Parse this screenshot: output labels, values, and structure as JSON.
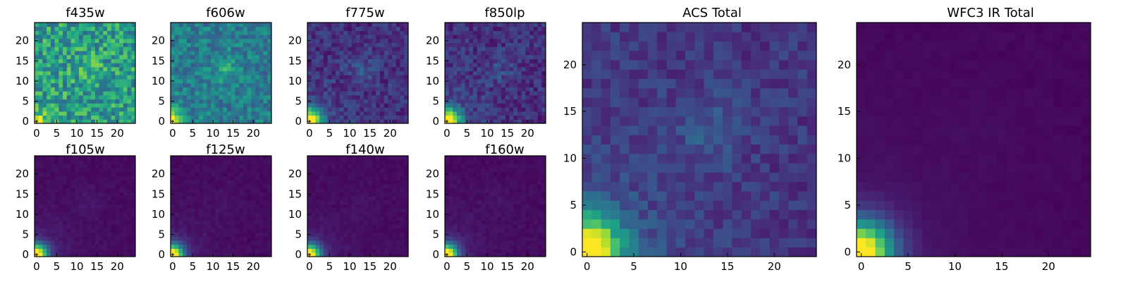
{
  "colormap": [
    "#440154",
    "#482878",
    "#3e4989",
    "#31688e",
    "#26828e",
    "#1f9e89",
    "#35b779",
    "#6ece58",
    "#b5de2b",
    "#fde725"
  ],
  "chart_data": [
    {
      "type": "heatmap",
      "title": "f435w",
      "xticks": [
        "0",
        "5",
        "10",
        "15",
        "20"
      ],
      "yticks": [
        "0",
        "5",
        "10",
        "15",
        "20"
      ],
      "xlim": [
        0,
        24
      ],
      "ylim": [
        0,
        24
      ],
      "grid": false,
      "noise": 0.22,
      "base": 0.55,
      "core": 0.45,
      "core_scale": 1.6,
      "halo": 0.05,
      "blob": 0.12,
      "seed": 3
    },
    {
      "type": "heatmap",
      "title": "f606w",
      "xticks": [
        "0",
        "5",
        "10",
        "15",
        "20"
      ],
      "yticks": [
        "0",
        "5",
        "10",
        "15",
        "20"
      ],
      "xlim": [
        0,
        24
      ],
      "ylim": [
        0,
        24
      ],
      "grid": false,
      "noise": 0.14,
      "base": 0.42,
      "core": 0.58,
      "core_scale": 1.8,
      "halo": 0.08,
      "blob": 0.16,
      "seed": 7
    },
    {
      "type": "heatmap",
      "title": "f775w",
      "xticks": [
        "0",
        "5",
        "10",
        "15",
        "20"
      ],
      "yticks": [
        "0",
        "5",
        "10",
        "15",
        "20"
      ],
      "xlim": [
        0,
        24
      ],
      "ylim": [
        0,
        24
      ],
      "grid": false,
      "noise": 0.1,
      "base": 0.14,
      "core": 0.86,
      "core_scale": 2.2,
      "halo": 0.2,
      "blob": 0.12,
      "seed": 11
    },
    {
      "type": "heatmap",
      "title": "f850lp",
      "xticks": [
        "0",
        "5",
        "10",
        "15",
        "20"
      ],
      "yticks": [
        "0",
        "5",
        "10",
        "15",
        "20"
      ],
      "xlim": [
        0,
        24
      ],
      "ylim": [
        0,
        24
      ],
      "grid": false,
      "noise": 0.1,
      "base": 0.14,
      "core": 0.86,
      "core_scale": 2.3,
      "halo": 0.22,
      "blob": 0.09,
      "seed": 13
    },
    {
      "type": "heatmap",
      "title": "f105w",
      "xticks": [
        "0",
        "5",
        "10",
        "15",
        "20"
      ],
      "yticks": [
        "0",
        "5",
        "10",
        "15",
        "20"
      ],
      "xlim": [
        0,
        24
      ],
      "ylim": [
        0,
        24
      ],
      "grid": false,
      "noise": 0.02,
      "base": 0.03,
      "core": 0.97,
      "core_scale": 1.9,
      "halo": 0.16,
      "blob": 0.03,
      "seed": 17
    },
    {
      "type": "heatmap",
      "title": "f125w",
      "xticks": [
        "0",
        "5",
        "10",
        "15",
        "20"
      ],
      "yticks": [
        "0",
        "5",
        "10",
        "15",
        "20"
      ],
      "xlim": [
        0,
        24
      ],
      "ylim": [
        0,
        24
      ],
      "grid": false,
      "noise": 0.02,
      "base": 0.03,
      "core": 0.97,
      "core_scale": 1.9,
      "halo": 0.14,
      "blob": 0.02,
      "seed": 19
    },
    {
      "type": "heatmap",
      "title": "f140w",
      "xticks": [
        "0",
        "5",
        "10",
        "15",
        "20"
      ],
      "yticks": [
        "0",
        "5",
        "10",
        "15",
        "20"
      ],
      "xlim": [
        0,
        24
      ],
      "ylim": [
        0,
        24
      ],
      "grid": false,
      "noise": 0.02,
      "base": 0.03,
      "core": 0.97,
      "core_scale": 1.9,
      "halo": 0.14,
      "blob": 0.02,
      "seed": 23
    },
    {
      "type": "heatmap",
      "title": "f160w",
      "xticks": [
        "0",
        "5",
        "10",
        "15",
        "20"
      ],
      "yticks": [
        "0",
        "5",
        "10",
        "15",
        "20"
      ],
      "xlim": [
        0,
        24
      ],
      "ylim": [
        0,
        24
      ],
      "grid": false,
      "noise": 0.02,
      "base": 0.03,
      "core": 0.97,
      "core_scale": 1.9,
      "halo": 0.16,
      "blob": 0.02,
      "seed": 29
    },
    {
      "type": "heatmap",
      "title": "ACS Total",
      "xticks": [
        "0",
        "5",
        "10",
        "15",
        "20"
      ],
      "yticks": [
        "0",
        "5",
        "10",
        "15",
        "20"
      ],
      "xlim": [
        0,
        24
      ],
      "ylim": [
        0,
        24
      ],
      "grid": false,
      "noise": 0.08,
      "base": 0.16,
      "core": 0.84,
      "core_scale": 2.6,
      "halo": 0.28,
      "blob": 0.12,
      "seed": 31
    },
    {
      "type": "heatmap",
      "title": "WFC3 IR Total",
      "xticks": [
        "0",
        "5",
        "10",
        "15",
        "20"
      ],
      "yticks": [
        "0",
        "5",
        "10",
        "15",
        "20"
      ],
      "xlim": [
        0,
        24
      ],
      "ylim": [
        0,
        24
      ],
      "grid": false,
      "noise": 0.01,
      "base": 0.02,
      "core": 0.98,
      "core_scale": 2.3,
      "halo": 0.14,
      "blob": 0.01,
      "seed": 37
    }
  ]
}
